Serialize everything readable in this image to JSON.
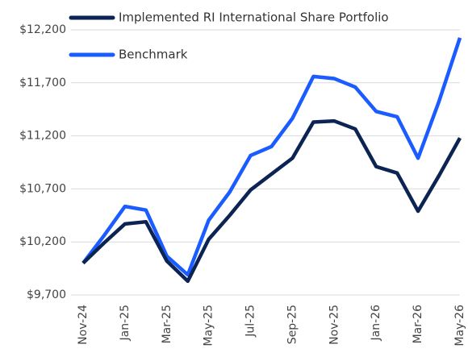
{
  "chart_data": {
    "type": "line",
    "categories": [
      "Nov-24",
      null,
      "Jan-25",
      null,
      "Mar-25",
      null,
      "May-25",
      null,
      "Jul-25",
      null,
      "Sep-25",
      null,
      "Nov-25",
      null,
      "Jan-26",
      null,
      "Mar-26",
      null,
      "May-26"
    ],
    "series": [
      {
        "name": "Implemented RI International Share Portfolio",
        "color": "#0b2453",
        "values": [
          10000,
          10190,
          10370,
          10390,
          10020,
          9830,
          10225,
          10450,
          10690,
          10840,
          10990,
          11330,
          11340,
          11265,
          10910,
          10850,
          10490,
          10825,
          11180
        ]
      },
      {
        "name": "Benchmark",
        "color": "#1a5cff",
        "values": [
          10000,
          10260,
          10535,
          10500,
          10065,
          9890,
          10405,
          10670,
          11015,
          11100,
          11365,
          11760,
          11740,
          11660,
          11430,
          11380,
          10990,
          11525,
          12125
        ]
      }
    ],
    "ylim": [
      9700,
      12200
    ],
    "yticks": [
      {
        "value": 9700,
        "label": "$9,700"
      },
      {
        "value": 10200,
        "label": "$10,200"
      },
      {
        "value": 10700,
        "label": "$10,700"
      },
      {
        "value": 11200,
        "label": "$11,200"
      },
      {
        "value": 11700,
        "label": "$11,700"
      },
      {
        "value": 12200,
        "label": "$12,200"
      }
    ],
    "grid": true,
    "legend": "top-left"
  }
}
